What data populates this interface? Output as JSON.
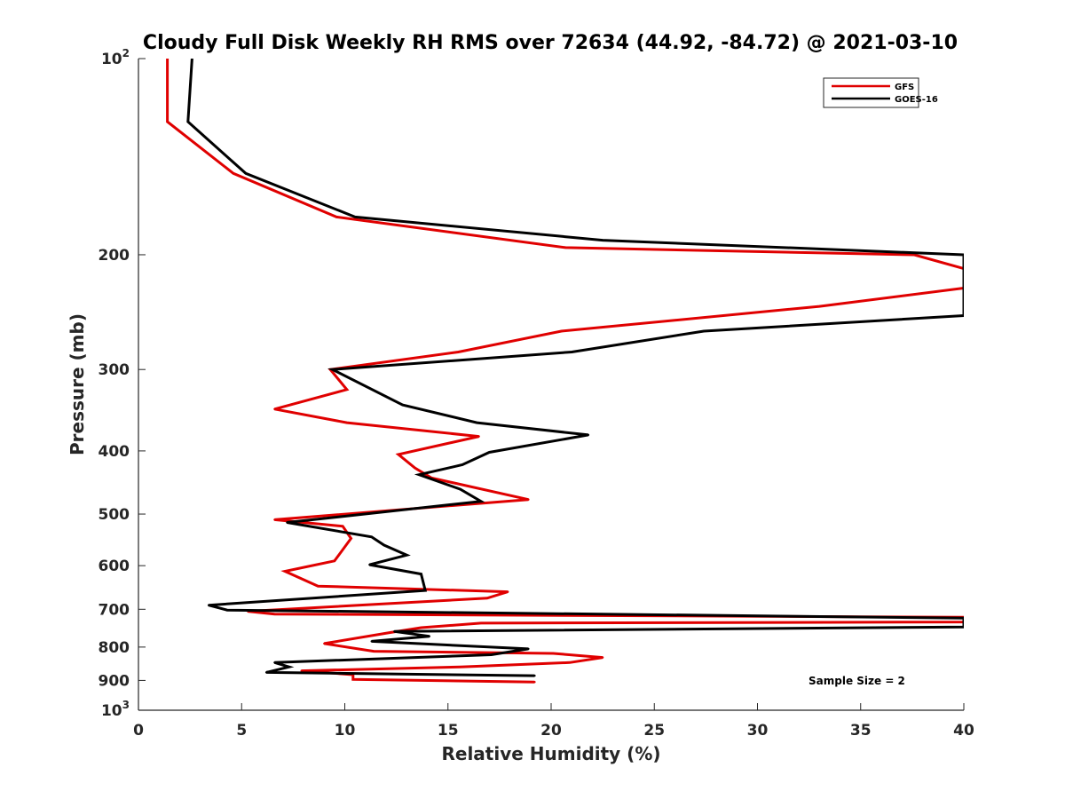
{
  "chart_data": {
    "type": "line",
    "title": "Cloudy Full Disk Weekly RH RMS over 72634 (44.92, -84.72) @ 2021-03-10",
    "xlabel": "Relative Humidity (%)",
    "ylabel": "Pressure (mb)",
    "xlim": [
      0,
      40
    ],
    "ylim": [
      100,
      1000
    ],
    "yscale": "log",
    "y_reversed": true,
    "grid": false,
    "legend_position": "top-right",
    "x_ticks": [
      "0",
      "5",
      "10",
      "15",
      "20",
      "25",
      "30",
      "35",
      "40"
    ],
    "x_tick_values": [
      0,
      5,
      10,
      15,
      20,
      25,
      30,
      35,
      40
    ],
    "y_ticks": [
      {
        "value": 100,
        "base": "10",
        "exp": "2"
      },
      {
        "value": 200,
        "label": "200"
      },
      {
        "value": 300,
        "label": "300"
      },
      {
        "value": 400,
        "label": "400"
      },
      {
        "value": 500,
        "label": "500"
      },
      {
        "value": 600,
        "label": "600"
      },
      {
        "value": 700,
        "label": "700"
      },
      {
        "value": 800,
        "label": "800"
      },
      {
        "value": 900,
        "label": "900"
      },
      {
        "value": 1000,
        "base": "10",
        "exp": "3"
      }
    ],
    "annotation": "Sample Size = 2",
    "series": [
      {
        "name": "GFS",
        "color": "#e00000",
        "points": [
          [
            1.4,
            100
          ],
          [
            1.4,
            125
          ],
          [
            4.6,
            150
          ],
          [
            9.6,
            175
          ],
          [
            20.7,
            195
          ],
          [
            37.6,
            200
          ],
          [
            40,
            210
          ],
          [
            40,
            225
          ],
          [
            33,
            240
          ],
          [
            20.5,
            262
          ],
          [
            15.5,
            282
          ],
          [
            9.3,
            300
          ],
          [
            10.1,
            322
          ],
          [
            6.6,
            345
          ],
          [
            10.1,
            362
          ],
          [
            16.5,
            380
          ],
          [
            12.6,
            405
          ],
          [
            13.4,
            425
          ],
          [
            14.2,
            440
          ],
          [
            18.9,
            475
          ],
          [
            6.6,
            510
          ],
          [
            9.9,
            522
          ],
          [
            10.3,
            545
          ],
          [
            9.5,
            590
          ],
          [
            7.1,
            612
          ],
          [
            8.7,
            645
          ],
          [
            17.9,
            658
          ],
          [
            16.9,
            673
          ],
          [
            5.3,
            705
          ],
          [
            6.6,
            712
          ],
          [
            40,
            720
          ],
          [
            40,
            732
          ],
          [
            16.6,
            735
          ],
          [
            13.7,
            747
          ],
          [
            12.2,
            760
          ],
          [
            9.0,
            790
          ],
          [
            11.4,
            812
          ],
          [
            20.1,
            818
          ],
          [
            22.5,
            830
          ],
          [
            20.9,
            845
          ],
          [
            15.6,
            858
          ],
          [
            7.9,
            870
          ],
          [
            10.4,
            882
          ],
          [
            10.4,
            897
          ],
          [
            19.2,
            905
          ]
        ]
      },
      {
        "name": "GOES-16",
        "color": "#000000",
        "points": [
          [
            2.6,
            100
          ],
          [
            2.4,
            125
          ],
          [
            5.2,
            150
          ],
          [
            10.5,
            175
          ],
          [
            22.5,
            190
          ],
          [
            40,
            200
          ],
          [
            40,
            248
          ],
          [
            27.4,
            262
          ],
          [
            21,
            282
          ],
          [
            9.4,
            300
          ],
          [
            12.8,
            340
          ],
          [
            16.4,
            362
          ],
          [
            21.8,
            378
          ],
          [
            17,
            402
          ],
          [
            15.7,
            420
          ],
          [
            13.6,
            435
          ],
          [
            15.6,
            458
          ],
          [
            16.6,
            478
          ],
          [
            9.7,
            505
          ],
          [
            7.2,
            515
          ],
          [
            11.3,
            542
          ],
          [
            11.9,
            558
          ],
          [
            13.0,
            578
          ],
          [
            11.2,
            598
          ],
          [
            13.7,
            618
          ],
          [
            13.9,
            655
          ],
          [
            3.4,
            690
          ],
          [
            4.3,
            702
          ],
          [
            40,
            722
          ],
          [
            40,
            745
          ],
          [
            12.4,
            757
          ],
          [
            14.1,
            770
          ],
          [
            11.3,
            784
          ],
          [
            18.9,
            805
          ],
          [
            17.1,
            822
          ],
          [
            6.6,
            845
          ],
          [
            7.3,
            858
          ],
          [
            6.2,
            875
          ],
          [
            19.2,
            885
          ]
        ]
      }
    ]
  }
}
